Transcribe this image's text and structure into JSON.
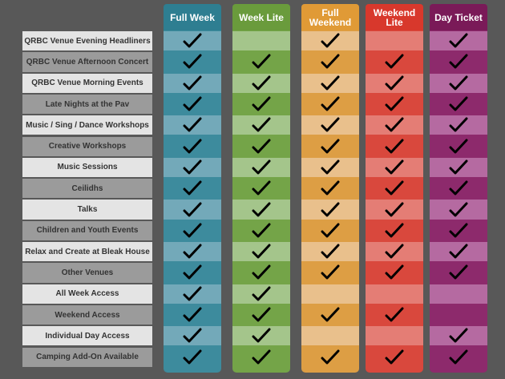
{
  "columns": [
    "Full Week",
    "Week Lite",
    "Full Weekend",
    "Weekend Lite",
    "Day Ticket"
  ],
  "rows": [
    {
      "label": "QRBC Venue Evening Headliners",
      "checks": [
        true,
        false,
        true,
        false,
        true
      ]
    },
    {
      "label": "QRBC Venue Afternoon Concert",
      "checks": [
        true,
        true,
        true,
        true,
        true
      ]
    },
    {
      "label": "QRBC Venue Morning Events",
      "checks": [
        true,
        true,
        true,
        true,
        true
      ]
    },
    {
      "label": "Late Nights at the Pav",
      "checks": [
        true,
        true,
        true,
        true,
        true
      ]
    },
    {
      "label": "Music / Sing / Dance Workshops",
      "checks": [
        true,
        true,
        true,
        true,
        true
      ]
    },
    {
      "label": "Creative Workshops",
      "checks": [
        true,
        true,
        true,
        true,
        true
      ]
    },
    {
      "label": "Music Sessions",
      "checks": [
        true,
        true,
        true,
        true,
        true
      ]
    },
    {
      "label": "Ceilidhs",
      "checks": [
        true,
        true,
        true,
        true,
        true
      ]
    },
    {
      "label": "Talks",
      "checks": [
        true,
        true,
        true,
        true,
        true
      ]
    },
    {
      "label": "Children and Youth Events",
      "checks": [
        true,
        true,
        true,
        true,
        true
      ]
    },
    {
      "label": "Relax and Create at Bleak House",
      "checks": [
        true,
        true,
        true,
        true,
        true
      ]
    },
    {
      "label": "Other Venues",
      "checks": [
        true,
        true,
        true,
        true,
        true
      ]
    },
    {
      "label": "All Week Access",
      "checks": [
        true,
        true,
        false,
        false,
        false
      ]
    },
    {
      "label": "Weekend Access",
      "checks": [
        true,
        true,
        true,
        true,
        false
      ]
    },
    {
      "label": "Individual Day Access",
      "checks": [
        true,
        true,
        false,
        false,
        true
      ]
    },
    {
      "label": "Camping Add-On Available",
      "checks": [
        true,
        true,
        true,
        true,
        true
      ]
    }
  ]
}
